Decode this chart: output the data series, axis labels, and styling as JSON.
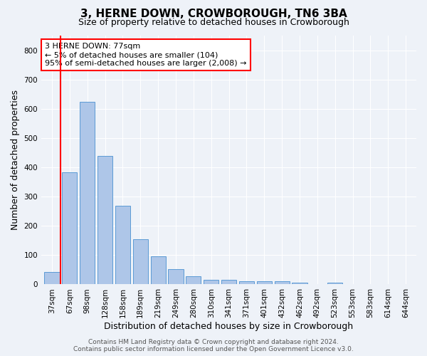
{
  "title": "3, HERNE DOWN, CROWBOROUGH, TN6 3BA",
  "subtitle": "Size of property relative to detached houses in Crowborough",
  "xlabel": "Distribution of detached houses by size in Crowborough",
  "ylabel": "Number of detached properties",
  "categories": [
    "37sqm",
    "67sqm",
    "98sqm",
    "128sqm",
    "158sqm",
    "189sqm",
    "219sqm",
    "249sqm",
    "280sqm",
    "310sqm",
    "341sqm",
    "371sqm",
    "401sqm",
    "432sqm",
    "462sqm",
    "492sqm",
    "523sqm",
    "553sqm",
    "583sqm",
    "614sqm",
    "644sqm"
  ],
  "values": [
    43,
    383,
    625,
    438,
    268,
    155,
    95,
    52,
    28,
    15,
    15,
    10,
    10,
    10,
    5,
    0,
    5,
    0,
    0,
    0,
    0
  ],
  "bar_color": "#aec6e8",
  "bar_edge_color": "#5b9bd5",
  "vline_color": "red",
  "annotation_line1": "3 HERNE DOWN: 77sqm",
  "annotation_line2": "← 5% of detached houses are smaller (104)",
  "annotation_line3": "95% of semi-detached houses are larger (2,008) →",
  "annotation_box_color": "white",
  "annotation_box_edge_color": "red",
  "ylim": [
    0,
    850
  ],
  "yticks": [
    0,
    100,
    200,
    300,
    400,
    500,
    600,
    700,
    800
  ],
  "footer": "Contains HM Land Registry data © Crown copyright and database right 2024.\nContains public sector information licensed under the Open Government Licence v3.0.",
  "title_fontsize": 11,
  "subtitle_fontsize": 9,
  "xlabel_fontsize": 9,
  "ylabel_fontsize": 9,
  "tick_fontsize": 7.5,
  "annotation_fontsize": 8,
  "footer_fontsize": 6.5,
  "background_color": "#eef2f8",
  "plot_bg_color": "#eef2f8"
}
